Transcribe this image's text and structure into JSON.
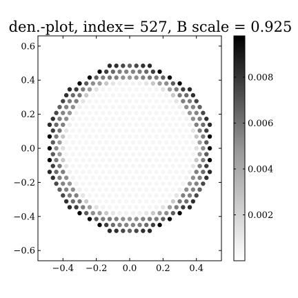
{
  "chart_data": {
    "type": "scatter",
    "title": "den.-plot, index= 527, B scale = 0.925",
    "xlabel": "",
    "ylabel": "",
    "xlim": [
      -0.55,
      0.55
    ],
    "ylim": [
      -0.66,
      0.66
    ],
    "xticks": [
      -0.4,
      -0.2,
      0.0,
      0.2,
      0.4
    ],
    "xtick_labels": [
      "−0.4",
      "−0.2",
      "0.0",
      "0.2",
      "0.4"
    ],
    "yticks": [
      -0.6,
      -0.4,
      -0.2,
      0.0,
      0.2,
      0.4,
      0.6
    ],
    "ytick_labels": [
      "−0.6",
      "−0.4",
      "−0.2",
      "0.0",
      "0.2",
      "0.4",
      "0.6"
    ],
    "colormap": "Greys",
    "color_range": [
      0.0,
      0.0098
    ],
    "colorbar_ticks": [
      0.002,
      0.004,
      0.006,
      0.008
    ],
    "colorbar_tick_labels": [
      "0.002",
      "0.004",
      "0.006",
      "0.008"
    ],
    "grid": false,
    "lattice": {
      "spacing": 0.04,
      "row_step": 0.0346,
      "radius_limit": 0.5
    },
    "density_model": {
      "rim_peak": 0.0098,
      "rim_radius": 0.49,
      "rim_width": 0.035,
      "second_ring_peak": 0.0045,
      "second_ring_radius": 0.43,
      "second_ring_width": 0.025,
      "background": 0.0002,
      "angular_harmonic": 6
    }
  }
}
